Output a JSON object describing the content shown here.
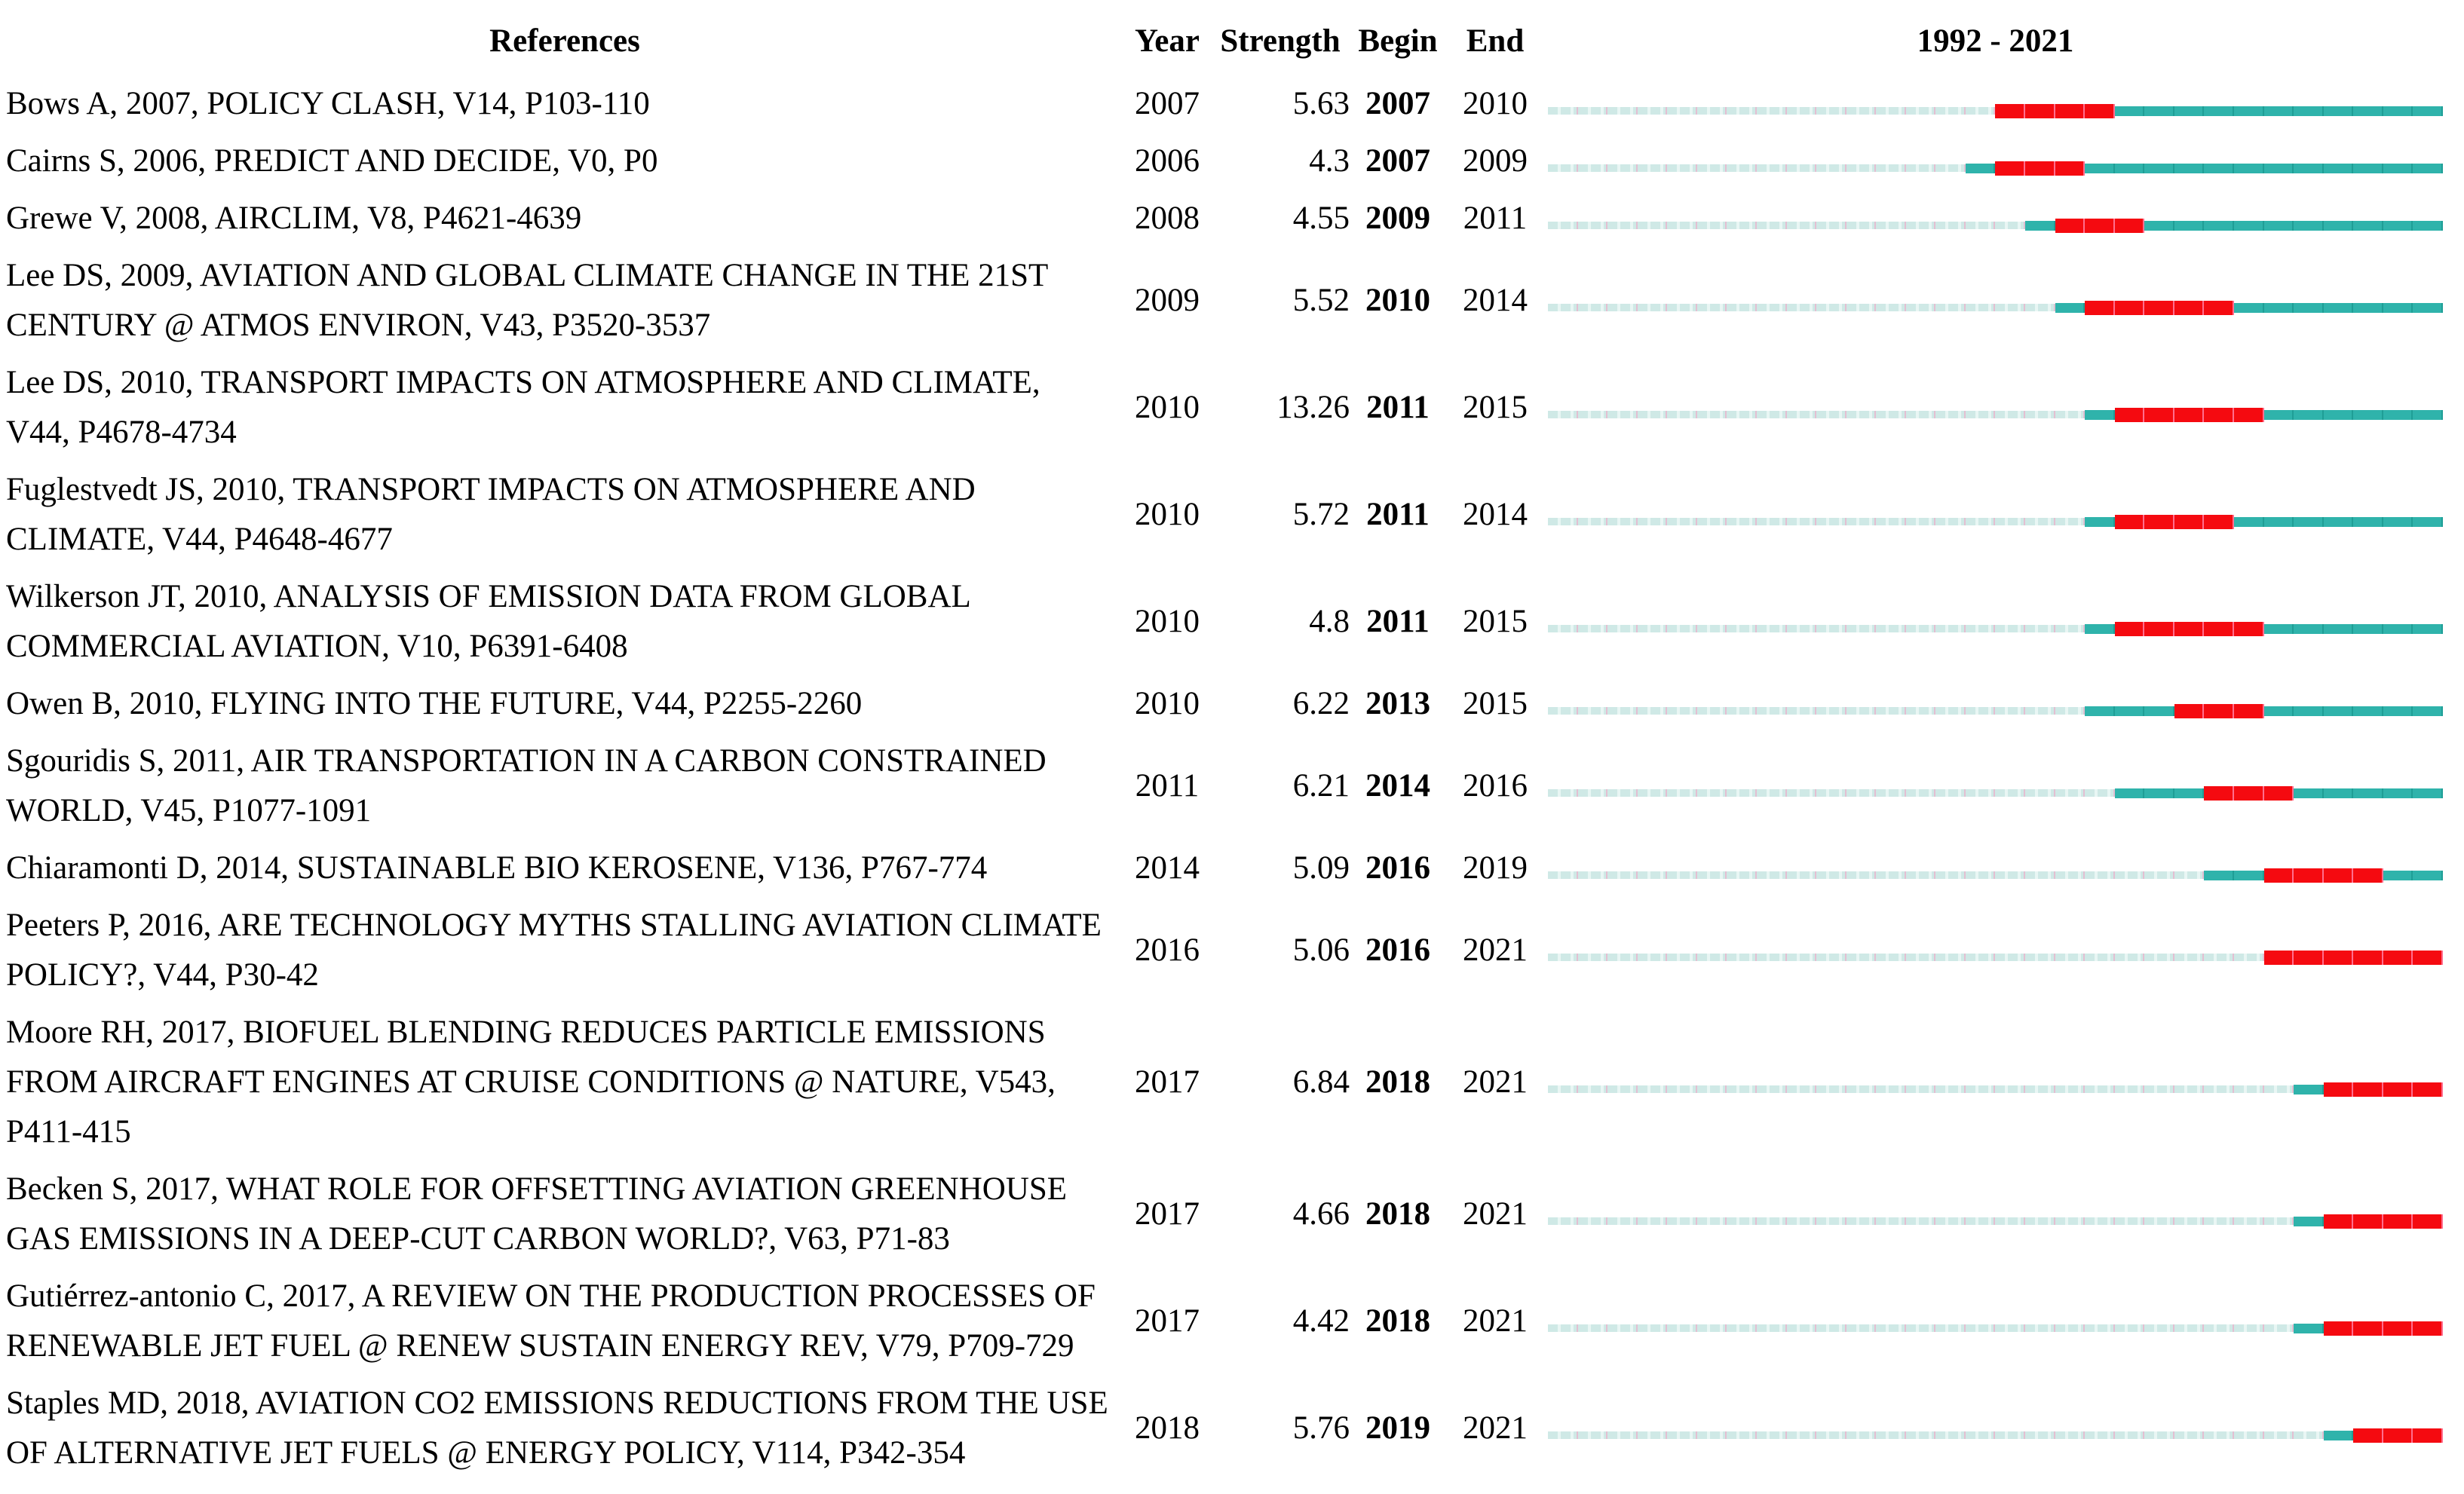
{
  "chart_data": {
    "type": "table",
    "title": "1992 - 2021",
    "columns": [
      "References",
      "Year",
      "Strength",
      "Begin",
      "End"
    ],
    "timeline_axis": {
      "start": 1992,
      "end": 2021
    },
    "legend": {
      "pre_publication_segment": "light cyan dashed line (years before publication)",
      "active_segment": "teal line (published, outside burst)",
      "burst_segment": "red bar (citation burst interval Begin-End)"
    },
    "rows": [
      {
        "reference": "Bows A, 2007, POLICY CLASH, V14, P103-110",
        "year": 2007,
        "strength": "5.63",
        "begin": 2007,
        "end": 2010
      },
      {
        "reference": "Cairns S, 2006, PREDICT AND DECIDE, V0, P0",
        "year": 2006,
        "strength": "4.3",
        "begin": 2007,
        "end": 2009
      },
      {
        "reference": "Grewe V, 2008, AIRCLIM, V8, P4621-4639",
        "year": 2008,
        "strength": "4.55",
        "begin": 2009,
        "end": 2011
      },
      {
        "reference": "Lee DS, 2009, AVIATION AND GLOBAL CLIMATE CHANGE IN THE 21ST CENTURY @ ATMOS ENVIRON, V43, P3520-3537",
        "year": 2009,
        "strength": "5.52",
        "begin": 2010,
        "end": 2014
      },
      {
        "reference": "Lee DS, 2010, TRANSPORT IMPACTS ON ATMOSPHERE AND CLIMATE, V44, P4678-4734",
        "year": 2010,
        "strength": "13.26",
        "begin": 2011,
        "end": 2015
      },
      {
        "reference": "Fuglestvedt JS, 2010, TRANSPORT IMPACTS ON ATMOSPHERE AND CLIMATE, V44, P4648-4677",
        "year": 2010,
        "strength": "5.72",
        "begin": 2011,
        "end": 2014
      },
      {
        "reference": "Wilkerson JT, 2010, ANALYSIS OF EMISSION DATA FROM GLOBAL COMMERCIAL AVIATION, V10, P6391-6408",
        "year": 2010,
        "strength": "4.8",
        "begin": 2011,
        "end": 2015
      },
      {
        "reference": "Owen B, 2010, FLYING INTO THE FUTURE, V44, P2255-2260",
        "year": 2010,
        "strength": "6.22",
        "begin": 2013,
        "end": 2015
      },
      {
        "reference": "Sgouridis S, 2011, AIR TRANSPORTATION IN A CARBON CONSTRAINED WORLD, V45, P1077-1091",
        "year": 2011,
        "strength": "6.21",
        "begin": 2014,
        "end": 2016
      },
      {
        "reference": "Chiaramonti D, 2014, SUSTAINABLE BIO KEROSENE, V136, P767-774",
        "year": 2014,
        "strength": "5.09",
        "begin": 2016,
        "end": 2019
      },
      {
        "reference": "Peeters P, 2016, ARE TECHNOLOGY MYTHS STALLING AVIATION CLIMATE POLICY?, V44, P30-42",
        "year": 2016,
        "strength": "5.06",
        "begin": 2016,
        "end": 2021
      },
      {
        "reference": "Moore RH, 2017, BIOFUEL BLENDING REDUCES PARTICLE EMISSIONS FROM AIRCRAFT ENGINES AT CRUISE CONDITIONS @ NATURE, V543, P411-415",
        "year": 2017,
        "strength": "6.84",
        "begin": 2018,
        "end": 2021
      },
      {
        "reference": "Becken S, 2017, WHAT ROLE FOR OFFSETTING AVIATION GREENHOUSE GAS EMISSIONS IN A DEEP-CUT CARBON WORLD?, V63, P71-83",
        "year": 2017,
        "strength": "4.66",
        "begin": 2018,
        "end": 2021
      },
      {
        "reference": "Gutiérrez-antonio C, 2017, A REVIEW ON THE PRODUCTION PROCESSES OF RENEWABLE JET FUEL @ RENEW SUSTAIN ENERGY REV, V79, P709-729",
        "year": 2017,
        "strength": "4.42",
        "begin": 2018,
        "end": 2021
      },
      {
        "reference": "Staples MD, 2018, AVIATION CO2 EMISSIONS REDUCTIONS FROM THE USE OF ALTERNATIVE JET FUELS @ ENERGY POLICY, V114, P342-354",
        "year": 2018,
        "strength": "5.76",
        "begin": 2019,
        "end": 2021
      }
    ]
  },
  "colors": {
    "burst": "#f50a10",
    "tick_burst": "#ff6e8e",
    "active": "#2fb3ab",
    "tick_active": "#1f9e96",
    "pre": "#cfe9e6",
    "pre_gap": "#e9f6f4",
    "tick_pre": "#e3bfd2"
  }
}
